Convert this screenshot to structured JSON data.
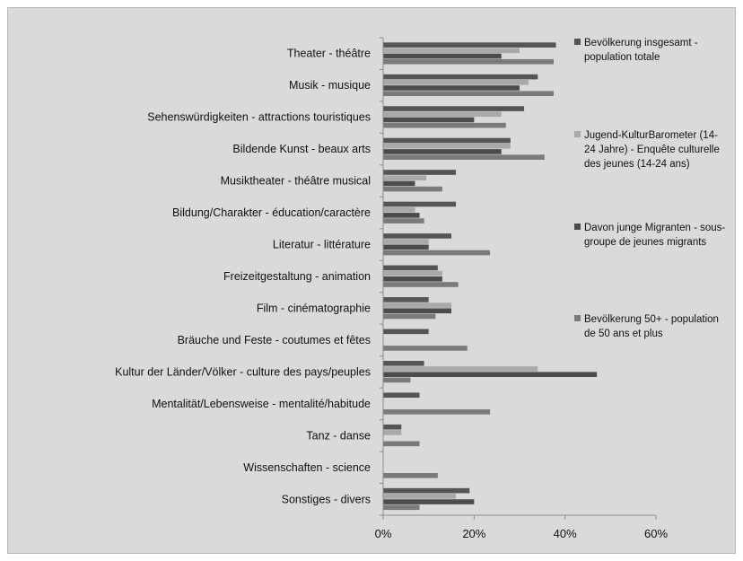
{
  "chart_data": {
    "type": "bar",
    "orientation": "horizontal",
    "categories": [
      "Theater - théâtre",
      "Musik - musique",
      "Sehenswürdigkeiten - attractions touristiques",
      "Bildende Kunst - beaux arts",
      "Musiktheater - théâtre musical",
      "Bildung/Charakter - éducation/caractère",
      "Literatur - littérature",
      "Freizeitgestaltung - animation",
      "Film - cinématographie",
      "Bräuche und Feste - coutumes et fêtes",
      "Kultur der Länder/Völker - culture des pays/peuples",
      "Mentalität/Lebensweise - mentalité/habitude",
      "Tanz - danse",
      "Wissenschaften - science",
      "Sonstiges - divers"
    ],
    "series": [
      {
        "name": "Bevölkerung insgesamt - population totale",
        "name_lines": [
          "Bevölkerung insgesamt -",
          "population totale"
        ],
        "color": "#555555",
        "values": [
          38,
          34,
          31,
          28,
          16,
          16,
          15,
          12,
          10,
          10,
          9,
          8,
          4,
          0,
          19
        ]
      },
      {
        "name": "Jugend-KulturBarometer (14-24 Jahre) - Enquête culturelle des jeunes (14-24 ans)",
        "name_lines": [
          "Jugend-KulturBarometer (14-",
          "24 Jahre) - Enquête culturelle",
          "des jeunes (14-24 ans)"
        ],
        "color": "#a9a9a9",
        "values": [
          30,
          32,
          26,
          28,
          9.5,
          7,
          10,
          13,
          15,
          0,
          34,
          0,
          4,
          0,
          16
        ]
      },
      {
        "name": "Davon junge Migranten - sous-groupe de jeunes migrants",
        "name_lines": [
          "Davon junge Migranten - sous-",
          "groupe de jeunes migrants"
        ],
        "color": "#4c4c4c",
        "values": [
          26,
          30,
          20,
          26,
          7,
          8,
          10,
          13,
          15,
          0,
          47,
          0,
          0,
          0,
          20
        ]
      },
      {
        "name": "Bevölkerung 50+ - population de 50 ans et plus",
        "name_lines": [
          "Bevölkerung 50+ - population",
          "de 50 ans et plus"
        ],
        "color": "#7a7a7a",
        "values": [
          37.5,
          37.5,
          27,
          35.5,
          13,
          9,
          23.5,
          16.5,
          11.5,
          18.5,
          6,
          23.5,
          8,
          12,
          8
        ]
      }
    ],
    "xlim": [
      0,
      60
    ],
    "xticks": [
      0,
      20,
      40,
      60
    ],
    "tick_labels": [
      "0%",
      "20%",
      "40%",
      "60%"
    ],
    "grid": false,
    "legend_position": "right"
  }
}
